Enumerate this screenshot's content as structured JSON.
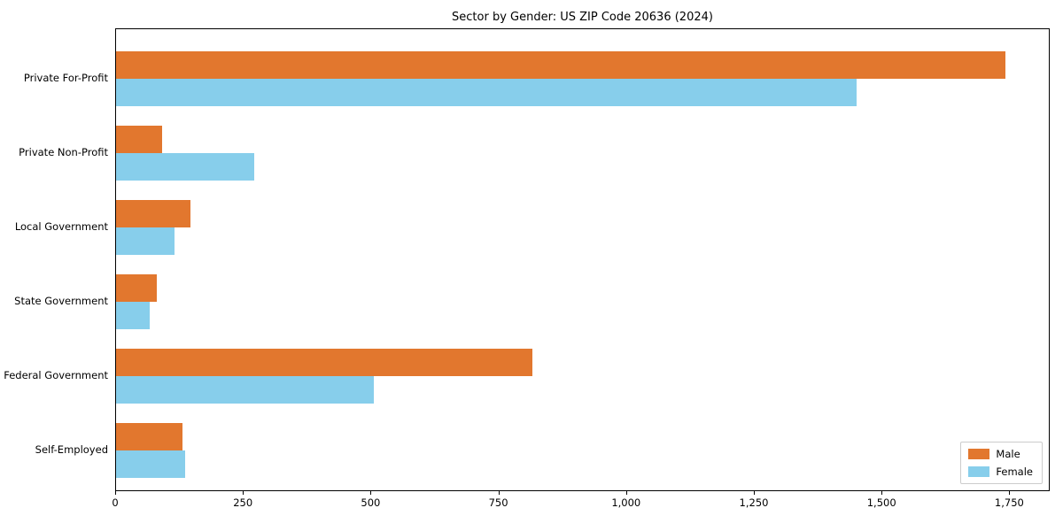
{
  "chart_data": {
    "type": "bar",
    "orientation": "horizontal",
    "title": "Sector by Gender: US ZIP Code 20636 (2024)",
    "xlabel": "",
    "ylabel": "",
    "categories": [
      "Private For-Profit",
      "Private Non-Profit",
      "Local Government",
      "State Government",
      "Federal Government",
      "Self-Employed"
    ],
    "series": [
      {
        "name": "Male",
        "color": "#e2772e",
        "values": [
          1740,
          90,
          145,
          80,
          815,
          130
        ]
      },
      {
        "name": "Female",
        "color": "#87ceeb",
        "values": [
          1450,
          270,
          115,
          65,
          505,
          135
        ]
      }
    ],
    "xlim": [
      0,
      1829
    ],
    "xticks": [
      0,
      250,
      500,
      750,
      1000,
      1250,
      1500,
      1750
    ],
    "xtick_labels": [
      "0",
      "250",
      "500",
      "750",
      "1,000",
      "1,250",
      "1,500",
      "1,750"
    ],
    "legend_position": "lower right",
    "grid": false,
    "background_color": "#ffffff",
    "axis_color": "#000000"
  }
}
